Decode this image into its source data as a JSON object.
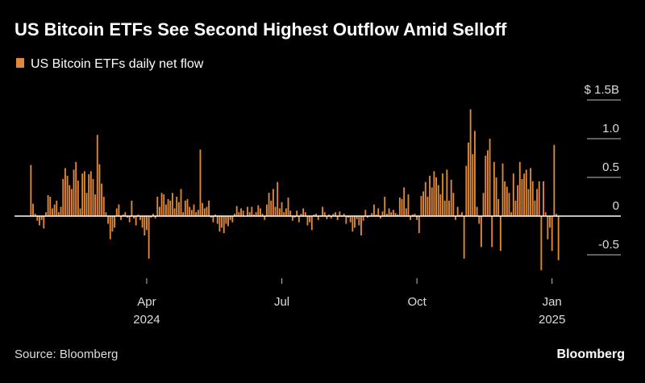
{
  "chart_data": {
    "type": "bar",
    "title": "US Bitcoin ETFs See Second Highest Outflow Amid Selloff",
    "source": "Source: Bloomberg",
    "brand": "Bloomberg",
    "series": [
      {
        "name": "US Bitcoin ETFs daily net flow",
        "color": "#e0893a",
        "values": [
          0.66,
          0.16,
          0.03,
          -0.06,
          -0.12,
          -0.05,
          -0.16,
          0.05,
          0.27,
          0.25,
          0.1,
          0.15,
          0.2,
          0.05,
          0.12,
          0.48,
          0.62,
          0.52,
          0.4,
          0.35,
          0.6,
          0.7,
          0.46,
          0.1,
          0.55,
          0.58,
          0.3,
          0.54,
          0.58,
          0.48,
          0.28,
          1.05,
          0.67,
          0.42,
          0.25,
          0.05,
          -0.1,
          -0.3,
          -0.2,
          -0.15,
          0.1,
          0.15,
          -0.05,
          0.02,
          0.05,
          -0.02,
          -0.08,
          0.2,
          -0.03,
          -0.12,
          0.02,
          -0.05,
          -0.15,
          -0.25,
          -0.18,
          -0.55,
          -0.02,
          0.03,
          -0.03,
          0.25,
          0.12,
          0.3,
          0.28,
          0.15,
          0.22,
          0.2,
          0.3,
          0.1,
          0.25,
          0.18,
          0.35,
          0.05,
          0.2,
          0.22,
          0.12,
          0.08,
          0.15,
          0.05,
          0.08,
          0.86,
          0.17,
          0.1,
          0.12,
          0.2,
          -0.02,
          -0.08,
          0.02,
          -0.1,
          -0.2,
          -0.15,
          -0.22,
          -0.1,
          -0.13,
          -0.05,
          -0.08,
          0.03,
          0.13,
          0.05,
          0.1,
          0.07,
          0.0,
          0.12,
          0.05,
          0.12,
          0.02,
          0.05,
          0.14,
          0.1,
          0.03,
          -0.05,
          0.15,
          0.3,
          0.2,
          0.35,
          0.12,
          0.44,
          0.1,
          0.18,
          0.05,
          0.1,
          0.24,
          0.07,
          -0.06,
          -0.02,
          0.07,
          -0.08,
          0.03,
          0.1,
          0.05,
          -0.12,
          -0.08,
          -0.18,
          0.02,
          0.03,
          -0.05,
          0.01,
          0.12,
          0.05,
          -0.04,
          0.02,
          -0.03,
          0.03,
          0.05,
          -0.05,
          0.06,
          0.01,
          0.03,
          -0.1,
          -0.02,
          -0.08,
          -0.2,
          -0.15,
          -0.04,
          -0.12,
          -0.25,
          -0.06,
          0.08,
          -0.02,
          0.01,
          0.04,
          0.15,
          0.02,
          0.1,
          -0.03,
          0.06,
          0.25,
          0.03,
          0.1,
          0.05,
          0.08,
          0.04,
          0.02,
          0.24,
          0.22,
          0.37,
          0.1,
          0.28,
          -0.05,
          0.02,
          0.03,
          -0.05,
          -0.22,
          0.26,
          0.32,
          0.44,
          0.25,
          0.52,
          0.37,
          0.58,
          0.5,
          0.4,
          0.28,
          0.55,
          0.2,
          0.6,
          0.2,
          0.47,
          0.3,
          -0.05,
          0.12,
          0.02,
          0.05,
          -0.55,
          0.65,
          0.95,
          1.38,
          0.8,
          1.1,
          0.12,
          -0.1,
          -0.4,
          0.3,
          0.78,
          0.85,
          1.0,
          -0.4,
          0.7,
          0.5,
          0.22,
          -0.45,
          0.68,
          0.45,
          0.38,
          0.3,
          0.05,
          0.55,
          0.2,
          0.4,
          0.7,
          0.48,
          0.55,
          0.6,
          0.35,
          0.62,
          0.45,
          0.2,
          0.35,
          0.45,
          -0.7,
          0.45,
          0.05,
          -0.3,
          -0.15,
          -0.45,
          0.92,
          0.03,
          -0.57
        ]
      }
    ],
    "xlim": [
      -0.5,
      246.5
    ],
    "xticks": [
      {
        "value": 54,
        "label": "Apr"
      },
      {
        "value": 117,
        "label": "Jul"
      },
      {
        "value": 180,
        "label": "Oct"
      },
      {
        "value": 243,
        "label": "Jan"
      }
    ],
    "xsublabels": [
      {
        "value": 54,
        "label": "2024"
      },
      {
        "value": 243,
        "label": "2025"
      }
    ],
    "ylim": [
      -0.75,
      1.5
    ],
    "yticks": [
      {
        "value": 1.5,
        "label": "$ 1.5B"
      },
      {
        "value": 1,
        "label": "1.0"
      },
      0.5,
      0,
      -0.5
    ]
  }
}
